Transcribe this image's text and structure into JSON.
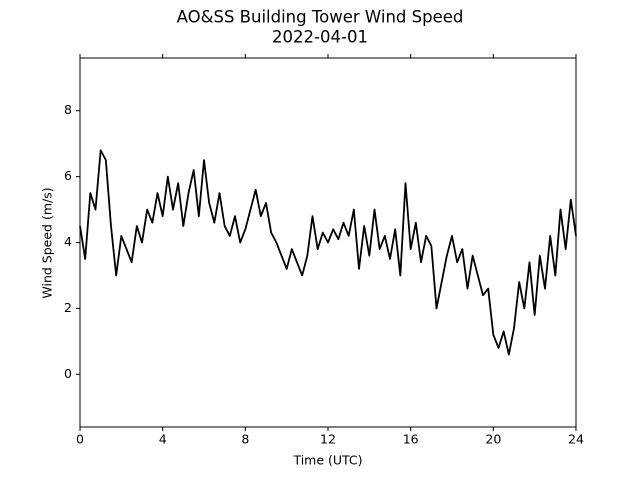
{
  "chart_data": {
    "type": "line",
    "title": "AO&SS Building Tower Wind Speed",
    "subtitle": "2022-04-01",
    "x_label": "Time (UTC)",
    "y_label": "Wind Speed (m/s)",
    "xlim": [
      0,
      24
    ],
    "xticks": [
      0,
      4,
      8,
      12,
      16,
      20,
      24
    ],
    "ylim": [
      -1.6,
      9.6
    ],
    "yticks": [
      0,
      2,
      4,
      6,
      8
    ],
    "grid": false,
    "series": [
      {
        "name": "Wind Speed",
        "color": "#000000",
        "x": [
          0,
          0.25,
          0.5,
          0.75,
          1,
          1.25,
          1.5,
          1.75,
          2,
          2.25,
          2.5,
          2.75,
          3,
          3.25,
          3.5,
          3.75,
          4,
          4.25,
          4.5,
          4.75,
          5,
          5.25,
          5.5,
          5.75,
          6,
          6.25,
          6.5,
          6.75,
          7,
          7.25,
          7.5,
          7.75,
          8,
          8.25,
          8.5,
          8.75,
          9,
          9.25,
          9.5,
          9.75,
          10,
          10.25,
          10.5,
          10.75,
          11,
          11.25,
          11.5,
          11.75,
          12,
          12.25,
          12.5,
          12.75,
          13,
          13.25,
          13.5,
          13.75,
          14,
          14.25,
          14.5,
          14.75,
          15,
          15.25,
          15.5,
          15.75,
          16,
          16.25,
          16.5,
          16.75,
          17,
          17.25,
          17.5,
          17.75,
          18,
          18.25,
          18.5,
          18.75,
          19,
          19.25,
          19.5,
          19.75,
          20,
          20.25,
          20.5,
          20.75,
          21,
          21.25,
          21.5,
          21.75,
          22,
          22.25,
          22.5,
          22.75,
          23,
          23.25,
          23.5,
          23.75,
          24
        ],
        "values": [
          4.5,
          3.5,
          5.5,
          5.0,
          6.8,
          6.5,
          4.5,
          3.0,
          4.2,
          3.8,
          3.4,
          4.5,
          4.0,
          5.0,
          4.6,
          5.5,
          4.8,
          6.0,
          5.0,
          5.8,
          4.5,
          5.5,
          6.2,
          4.8,
          6.5,
          5.2,
          4.6,
          5.5,
          4.5,
          4.2,
          4.8,
          4.0,
          4.4,
          5.0,
          5.6,
          4.8,
          5.2,
          4.3,
          4.0,
          3.6,
          3.2,
          3.8,
          3.4,
          3.0,
          3.6,
          4.8,
          3.8,
          4.3,
          4.0,
          4.4,
          4.1,
          4.6,
          4.2,
          5.0,
          3.2,
          4.5,
          3.6,
          5.0,
          3.8,
          4.2,
          3.5,
          4.4,
          3.0,
          5.8,
          3.8,
          4.6,
          3.4,
          4.2,
          3.9,
          2.0,
          2.8,
          3.6,
          4.2,
          3.4,
          3.8,
          2.6,
          3.6,
          3.0,
          2.4,
          2.6,
          1.2,
          0.8,
          1.3,
          0.6,
          1.4,
          2.8,
          2.0,
          3.4,
          1.8,
          3.6,
          2.6,
          4.2,
          3.0,
          5.0,
          3.8,
          5.3,
          4.2
        ]
      }
    ]
  }
}
